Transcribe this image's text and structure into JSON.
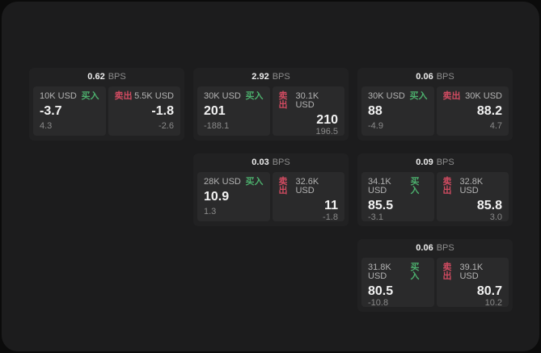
{
  "labels": {
    "bps_unit": "BPS",
    "buy": "买入",
    "sell": "卖出"
  },
  "colors": {
    "buy": "#4caf6d",
    "sell": "#d14b61",
    "window_bg": "#1c1c1d",
    "card_bg": "#212122",
    "panel_bg": "#2a2a2b"
  },
  "cards": [
    {
      "bps": "0.62",
      "buy": {
        "size": "10K USD",
        "main": "-3.7",
        "sub": "4.3"
      },
      "sell": {
        "size": "5.5K USD",
        "main": "-1.8",
        "sub": "-2.6"
      }
    },
    {
      "bps": "2.92",
      "buy": {
        "size": "30K USD",
        "main": "201",
        "sub": "-188.1"
      },
      "sell": {
        "size": "30.1K USD",
        "main": "210",
        "sub": "196.5"
      }
    },
    {
      "bps": "0.06",
      "buy": {
        "size": "30K USD",
        "main": "88",
        "sub": "-4.9"
      },
      "sell": {
        "size": "30K USD",
        "main": "88.2",
        "sub": "4.7"
      }
    },
    {
      "bps": "0.03",
      "buy": {
        "size": "28K USD",
        "main": "10.9",
        "sub": "1.3"
      },
      "sell": {
        "size": "32.6K USD",
        "main": "11",
        "sub": "-1.8"
      }
    },
    {
      "bps": "0.09",
      "buy": {
        "size": "34.1K USD",
        "main": "85.5",
        "sub": "-3.1"
      },
      "sell": {
        "size": "32.8K USD",
        "main": "85.8",
        "sub": "3.0"
      }
    },
    {
      "bps": "0.06",
      "buy": {
        "size": "31.8K USD",
        "main": "80.5",
        "sub": "-10.8"
      },
      "sell": {
        "size": "39.1K USD",
        "main": "80.7",
        "sub": "10.2"
      }
    }
  ]
}
